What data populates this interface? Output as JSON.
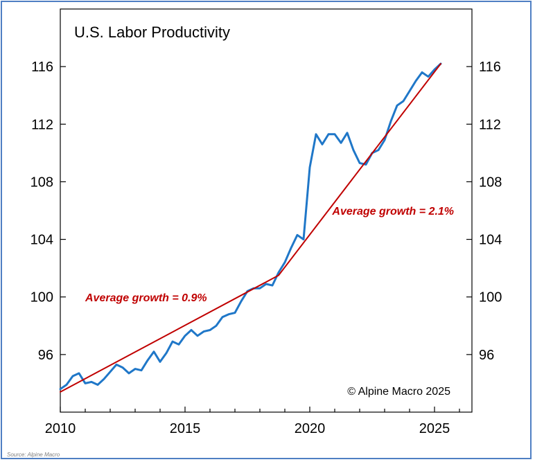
{
  "chart_data": {
    "type": "line",
    "title": "U.S. Labor Productivity",
    "xlabel": "",
    "ylabel": "",
    "xlim": [
      2010,
      2026.5
    ],
    "ylim": [
      92,
      120
    ],
    "x_ticks": [
      2010,
      2015,
      2020,
      2025
    ],
    "y_ticks": [
      96,
      100,
      104,
      108,
      112,
      116
    ],
    "grid": false,
    "series": [
      {
        "name": "U.S. Labor Productivity",
        "color": "#1f77c8",
        "x": [
          2010.0,
          2010.25,
          2010.5,
          2010.75,
          2011.0,
          2011.25,
          2011.5,
          2011.75,
          2012.0,
          2012.25,
          2012.5,
          2012.75,
          2013.0,
          2013.25,
          2013.5,
          2013.75,
          2014.0,
          2014.25,
          2014.5,
          2014.75,
          2015.0,
          2015.25,
          2015.5,
          2015.75,
          2016.0,
          2016.25,
          2016.5,
          2016.75,
          2017.0,
          2017.25,
          2017.5,
          2017.75,
          2018.0,
          2018.25,
          2018.5,
          2018.75,
          2019.0,
          2019.25,
          2019.5,
          2019.75,
          2020.0,
          2020.25,
          2020.5,
          2020.75,
          2021.0,
          2021.25,
          2021.5,
          2021.75,
          2022.0,
          2022.25,
          2022.5,
          2022.75,
          2023.0,
          2023.25,
          2023.5,
          2023.75,
          2024.0,
          2024.25,
          2024.5,
          2024.75,
          2025.0,
          2025.25
        ],
        "y": [
          93.6,
          93.9,
          94.5,
          94.7,
          94.0,
          94.1,
          93.9,
          94.3,
          94.8,
          95.3,
          95.1,
          94.7,
          95.0,
          94.9,
          95.6,
          96.2,
          95.5,
          96.1,
          96.9,
          96.7,
          97.3,
          97.7,
          97.3,
          97.6,
          97.7,
          98.0,
          98.6,
          98.8,
          98.9,
          99.7,
          100.4,
          100.6,
          100.6,
          100.9,
          100.8,
          101.7,
          102.4,
          103.4,
          104.3,
          104.0,
          109.0,
          111.3,
          110.6,
          111.3,
          111.3,
          110.7,
          111.4,
          110.2,
          109.3,
          109.2,
          110.0,
          110.2,
          110.9,
          112.2,
          113.3,
          113.6,
          114.3,
          115.0,
          115.6,
          115.3,
          115.8,
          116.2
        ]
      },
      {
        "name": "Average growth = 0.9%",
        "color": "#c00000",
        "x": [
          2010.0,
          2018.75
        ],
        "y": [
          93.4,
          101.5
        ]
      },
      {
        "name": "Average growth = 2.1%",
        "color": "#c00000",
        "x": [
          2018.75,
          2025.25
        ],
        "y": [
          101.5,
          116.2
        ]
      }
    ],
    "annotations": [
      {
        "text": "Average growth = 0.9%",
        "x": 2011.0,
        "y": 99.7,
        "color": "#c00000"
      },
      {
        "text": "Average growth = 2.1%",
        "x": 2020.9,
        "y": 105.7,
        "color": "#c00000"
      }
    ],
    "copyright": "© Alpine Macro 2025",
    "source": "Source: Alpine Macro"
  }
}
